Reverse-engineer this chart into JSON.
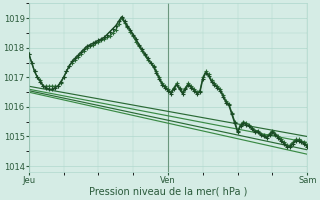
{
  "background_color": "#d5ece5",
  "grid_color": "#b0d8ce",
  "xlabel": "Pression niveau de la mer( hPa )",
  "xtick_labels": [
    "Jeu",
    "Ven",
    "Sam"
  ],
  "xtick_positions": [
    0,
    48,
    96
  ],
  "ylim": [
    1013.8,
    1019.5
  ],
  "yticks": [
    1014,
    1015,
    1016,
    1017,
    1018,
    1019
  ],
  "vline_positions": [
    0,
    48,
    96
  ],
  "vline_color": "#4a7a5a",
  "vline_lw": 0.8,
  "font_color": "#2a5a3a",
  "tick_fontsize": 6.0,
  "label_fontsize": 7.0,
  "series_curved": [
    {
      "x": [
        0,
        1,
        2,
        3,
        4,
        5,
        6,
        7,
        8,
        9,
        10,
        11,
        12,
        13,
        14,
        15,
        16,
        17,
        18,
        19,
        20,
        21,
        22,
        23,
        24,
        25,
        26,
        27,
        28,
        29,
        30,
        31,
        32,
        33,
        34,
        35,
        36,
        37,
        38,
        39,
        40,
        41,
        42,
        43,
        44,
        45,
        46,
        47,
        48,
        49,
        50,
        51,
        52,
        53,
        54,
        55,
        56,
        57,
        58,
        59,
        60,
        61,
        62,
        63,
        64,
        65,
        66,
        67,
        68,
        69,
        70,
        71,
        72,
        73,
        74,
        75,
        76,
        77,
        78,
        79,
        80,
        81,
        82,
        83,
        84,
        85,
        86,
        87,
        88,
        89,
        90,
        91,
        92,
        93,
        94,
        95,
        96
      ],
      "y": [
        1017.8,
        1017.5,
        1017.2,
        1017.0,
        1016.9,
        1016.7,
        1016.7,
        1016.7,
        1016.7,
        1016.7,
        1016.7,
        1016.8,
        1017.0,
        1017.2,
        1017.4,
        1017.5,
        1017.6,
        1017.7,
        1017.8,
        1017.9,
        1018.0,
        1018.05,
        1018.1,
        1018.15,
        1018.2,
        1018.25,
        1018.3,
        1018.35,
        1018.4,
        1018.5,
        1018.6,
        1018.8,
        1019.0,
        1018.85,
        1018.7,
        1018.55,
        1018.4,
        1018.2,
        1018.05,
        1017.9,
        1017.75,
        1017.6,
        1017.5,
        1017.4,
        1017.2,
        1017.0,
        1016.8,
        1016.7,
        1016.6,
        1016.5,
        1016.65,
        1016.8,
        1016.65,
        1016.5,
        1016.65,
        1016.8,
        1016.7,
        1016.6,
        1016.5,
        1016.55,
        1017.0,
        1017.2,
        1017.1,
        1016.9,
        1016.8,
        1016.7,
        1016.6,
        1016.4,
        1016.2,
        1016.1,
        1015.8,
        1015.5,
        1015.2,
        1015.4,
        1015.5,
        1015.45,
        1015.4,
        1015.3,
        1015.2,
        1015.2,
        1015.1,
        1015.05,
        1015.0,
        1015.1,
        1015.2,
        1015.1,
        1015.0,
        1014.9,
        1014.8,
        1014.7,
        1014.7,
        1014.8,
        1014.9,
        1014.9,
        1014.85,
        1014.8,
        1014.7
      ],
      "color": "#2a6a35",
      "lw": 0.9,
      "marker": "+",
      "ms": 3.5,
      "zorder": 4
    },
    {
      "x": [
        0,
        1,
        2,
        3,
        4,
        5,
        6,
        7,
        8,
        9,
        10,
        11,
        12,
        13,
        14,
        15,
        16,
        17,
        18,
        19,
        20,
        21,
        22,
        23,
        24,
        25,
        26,
        27,
        28,
        29,
        30,
        31,
        32,
        33,
        34,
        35,
        36,
        37,
        38,
        39,
        40,
        41,
        42,
        43,
        44,
        45,
        46,
        47,
        48,
        49,
        50,
        51,
        52,
        53,
        54,
        55,
        56,
        57,
        58,
        59,
        60,
        61,
        62,
        63,
        64,
        65,
        66,
        67,
        68,
        69,
        70,
        71,
        72,
        73,
        74,
        75,
        76,
        77,
        78,
        79,
        80,
        81,
        82,
        83,
        84,
        85,
        86,
        87,
        88,
        89,
        90,
        91,
        92,
        93,
        94,
        95,
        96
      ],
      "y": [
        1017.8,
        1017.5,
        1017.2,
        1017.0,
        1016.85,
        1016.7,
        1016.65,
        1016.6,
        1016.6,
        1016.65,
        1016.7,
        1016.85,
        1017.0,
        1017.2,
        1017.4,
        1017.55,
        1017.65,
        1017.75,
        1017.85,
        1017.95,
        1018.05,
        1018.1,
        1018.15,
        1018.2,
        1018.25,
        1018.3,
        1018.35,
        1018.45,
        1018.55,
        1018.65,
        1018.75,
        1018.9,
        1019.05,
        1018.9,
        1018.75,
        1018.6,
        1018.45,
        1018.3,
        1018.1,
        1017.95,
        1017.8,
        1017.65,
        1017.5,
        1017.35,
        1017.15,
        1016.95,
        1016.75,
        1016.65,
        1016.55,
        1016.45,
        1016.6,
        1016.75,
        1016.6,
        1016.45,
        1016.6,
        1016.75,
        1016.65,
        1016.55,
        1016.45,
        1016.5,
        1016.95,
        1017.15,
        1017.05,
        1016.85,
        1016.75,
        1016.65,
        1016.55,
        1016.35,
        1016.15,
        1016.05,
        1015.75,
        1015.45,
        1015.15,
        1015.35,
        1015.45,
        1015.4,
        1015.35,
        1015.25,
        1015.15,
        1015.15,
        1015.05,
        1015.0,
        1014.95,
        1015.05,
        1015.15,
        1015.05,
        1014.95,
        1014.85,
        1014.75,
        1014.65,
        1014.65,
        1014.75,
        1014.85,
        1014.85,
        1014.8,
        1014.75,
        1014.65
      ],
      "color": "#1a4a25",
      "lw": 1.0,
      "marker": "+",
      "ms": 3.5,
      "zorder": 5
    }
  ],
  "series_linear": [
    {
      "x": [
        0,
        96
      ],
      "y": [
        1016.7,
        1015.0
      ],
      "color": "#2a6a35",
      "lw": 0.85,
      "zorder": 2
    },
    {
      "x": [
        0,
        96
      ],
      "y": [
        1016.6,
        1014.8
      ],
      "color": "#3a8a45",
      "lw": 0.85,
      "zorder": 2
    },
    {
      "x": [
        0,
        96
      ],
      "y": [
        1016.55,
        1014.55
      ],
      "color": "#2a6a35",
      "lw": 0.85,
      "zorder": 2
    },
    {
      "x": [
        0,
        96
      ],
      "y": [
        1016.5,
        1014.4
      ],
      "color": "#3a8a45",
      "lw": 0.85,
      "zorder": 2
    }
  ]
}
